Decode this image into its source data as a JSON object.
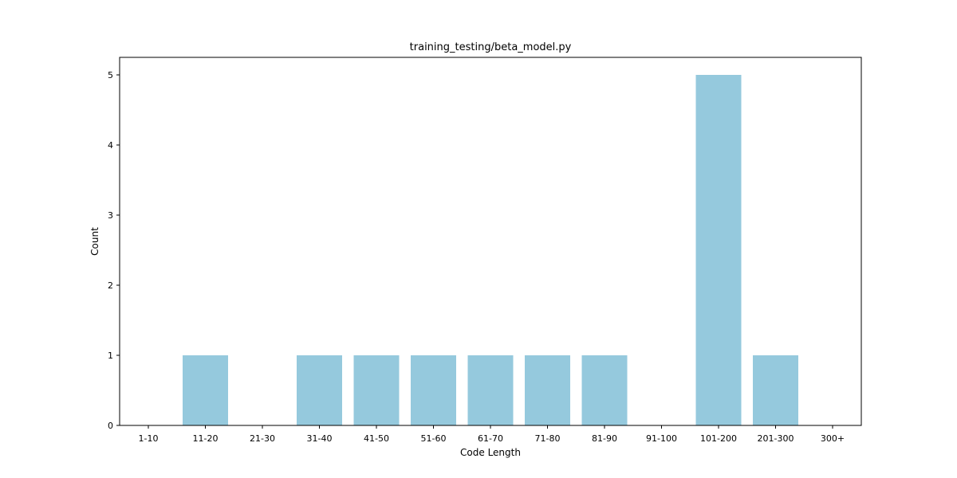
{
  "chart_data": {
    "type": "bar",
    "title": "training_testing/beta_model.py",
    "xlabel": "Code Length",
    "ylabel": "Count",
    "categories": [
      "1-10",
      "11-20",
      "21-30",
      "31-40",
      "41-50",
      "51-60",
      "61-70",
      "71-80",
      "81-90",
      "91-100",
      "101-200",
      "201-300",
      "300+"
    ],
    "values": [
      0,
      1,
      0,
      1,
      1,
      1,
      1,
      1,
      1,
      0,
      5,
      1,
      0
    ],
    "yticks": [
      0,
      1,
      2,
      3,
      4,
      5
    ],
    "ylim": [
      0,
      5.25
    ],
    "grid": false,
    "bar_color": "#95c9dd"
  }
}
